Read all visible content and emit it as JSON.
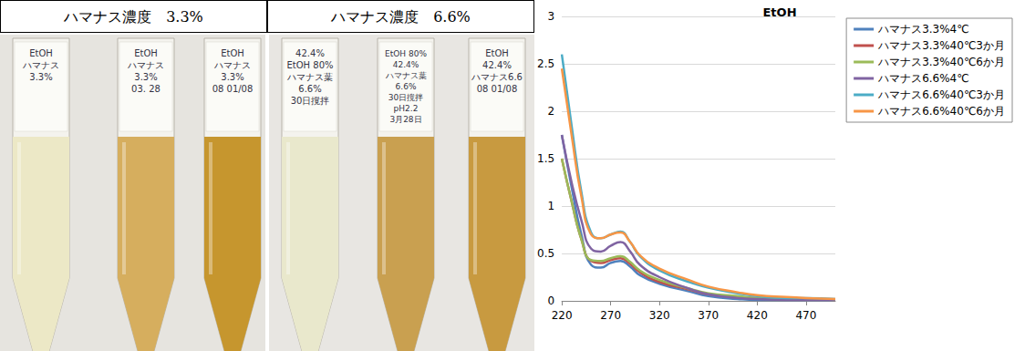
{
  "header": {
    "cells": [
      "ハマナス濃度　3.3%",
      "ハマナス濃度　6.6%"
    ]
  },
  "tubes": [
    {
      "label": [
        "EtOH",
        "ハマナス",
        "3.3%"
      ],
      "color": "#ece8c6"
    },
    {
      "label": [
        "EtOH",
        "ハマナス",
        "3.3%",
        "03. 28"
      ],
      "color": "#d6ae5e"
    },
    {
      "label": [
        "EtOH",
        "ハマナス",
        "3.3%",
        "08 01/08"
      ],
      "color": "#c6962e"
    },
    {
      "label": [
        "42.4%",
        "EtOH 80%",
        "ハマナス葉",
        "6.6%",
        "30日撹拌"
      ],
      "color": "#e9e8cc"
    },
    {
      "label": [
        "EtOH 80%",
        "42.4%",
        "ハマナス葉",
        "6.6%",
        "30日撹拌",
        "pH2.2",
        "3月28日"
      ],
      "color": "#c9a050"
    },
    {
      "label": [
        "EtOH",
        "42.4%",
        "ハマナス6.6",
        "08 01/08"
      ],
      "color": "#c89a40"
    }
  ],
  "chart_data": {
    "type": "line",
    "title": "EtOH",
    "x": [
      220,
      230,
      240,
      250,
      260,
      270,
      280,
      290,
      300,
      320,
      350,
      370,
      400,
      420,
      450,
      470,
      500
    ],
    "series": [
      {
        "name": "ハマナス3.3%4℃",
        "color": "#4f81bd",
        "values": [
          1.75,
          1.2,
          0.7,
          0.38,
          0.35,
          0.4,
          0.42,
          0.36,
          0.27,
          0.18,
          0.1,
          0.05,
          0.02,
          0.01,
          0.01,
          0.01,
          0.01
        ]
      },
      {
        "name": "ハマナス3.3%40℃3か月",
        "color": "#c0504d",
        "values": [
          1.5,
          1.05,
          0.65,
          0.42,
          0.4,
          0.43,
          0.45,
          0.39,
          0.3,
          0.2,
          0.12,
          0.07,
          0.04,
          0.03,
          0.02,
          0.02,
          0.01
        ]
      },
      {
        "name": "ハマナス3.3%40℃6か月",
        "color": "#9bbb59",
        "values": [
          1.5,
          1.05,
          0.65,
          0.43,
          0.42,
          0.45,
          0.47,
          0.41,
          0.32,
          0.22,
          0.13,
          0.08,
          0.05,
          0.03,
          0.02,
          0.02,
          0.01
        ]
      },
      {
        "name": "ハマナス6.6%4℃",
        "color": "#8064a2",
        "values": [
          1.75,
          1.25,
          0.85,
          0.55,
          0.52,
          0.58,
          0.62,
          0.52,
          0.38,
          0.25,
          0.13,
          0.07,
          0.03,
          0.02,
          0.01,
          0.01,
          0.01
        ]
      },
      {
        "name": "ハマナス6.6%40℃3か月",
        "color": "#4bacc6",
        "values": [
          2.6,
          1.85,
          1.15,
          0.72,
          0.66,
          0.7,
          0.73,
          0.62,
          0.47,
          0.32,
          0.2,
          0.14,
          0.08,
          0.05,
          0.03,
          0.03,
          0.02
        ]
      },
      {
        "name": "ハマナス6.6%40℃6か月",
        "color": "#f79646",
        "values": [
          2.45,
          1.75,
          1.1,
          0.7,
          0.66,
          0.7,
          0.72,
          0.62,
          0.48,
          0.34,
          0.22,
          0.15,
          0.09,
          0.06,
          0.04,
          0.03,
          0.02
        ]
      }
    ],
    "xlim": [
      220,
      500
    ],
    "xticks": [
      220,
      270,
      320,
      370,
      420,
      470
    ],
    "ylim": [
      0,
      3
    ],
    "yticks": [
      0,
      0.5,
      1,
      1.5,
      2,
      2.5,
      3
    ],
    "grid": true,
    "legend": "upper right"
  }
}
